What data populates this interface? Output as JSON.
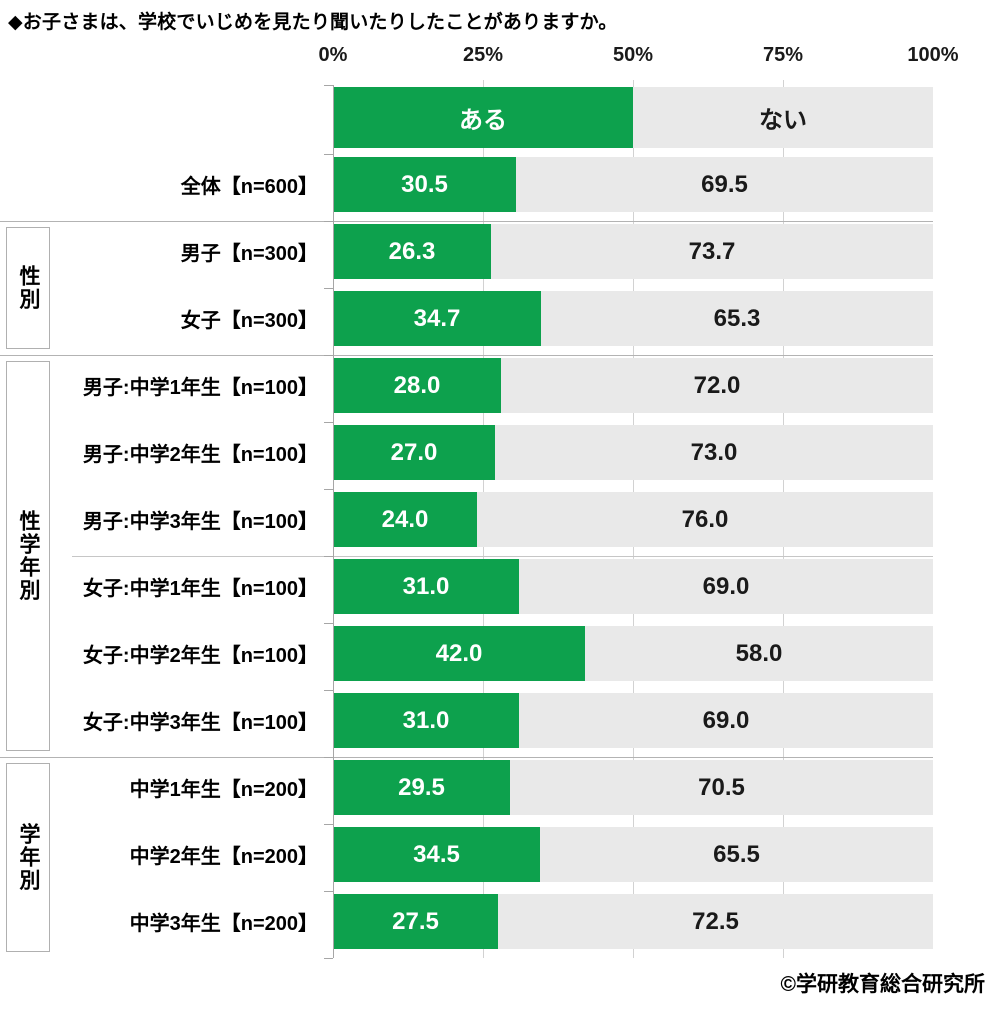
{
  "title": "◆お子さまは、学校でいじめを見たり聞いたりしたことがありますか。",
  "footer": "©学研教育総合研究所",
  "colors": {
    "aru_fill": "#0DA14D",
    "nai_fill": "#E9E9E9",
    "aru_text": "#ffffff",
    "nai_text": "#1a1a1a",
    "gridline": "#d2d2d2",
    "axis": "#a6a6a6",
    "group_line": "#b3b3b3"
  },
  "chart_data": {
    "type": "bar",
    "variant": "horizontal-stacked",
    "unit": "%",
    "xlim": [
      0,
      100
    ],
    "grid": true,
    "legend_position": "top-row",
    "tick_labels": [
      "0%",
      "25%",
      "50%",
      "75%",
      "100%"
    ],
    "tick_values": [
      0,
      25,
      50,
      75,
      100
    ],
    "value_decimals": 1,
    "categories": [
      "全体【n=600】",
      "男子【n=300】",
      "女子【n=300】",
      "男子:中学1年生【n=100】",
      "男子:中学2年生【n=100】",
      "男子:中学3年生【n=100】",
      "女子:中学1年生【n=100】",
      "女子:中学2年生【n=100】",
      "女子:中学3年生【n=100】",
      "中学1年生【n=200】",
      "中学2年生【n=200】",
      "中学3年生【n=200】"
    ],
    "series": [
      {
        "name": "ある",
        "values": [
          30.5,
          26.3,
          34.7,
          28.0,
          27.0,
          24.0,
          31.0,
          42.0,
          31.0,
          29.5,
          34.5,
          27.5
        ]
      },
      {
        "name": "ない",
        "values": [
          69.5,
          73.7,
          65.3,
          72.0,
          73.0,
          76.0,
          69.0,
          58.0,
          69.0,
          70.5,
          65.5,
          72.5
        ]
      }
    ],
    "legend_split": 50,
    "groups": [
      {
        "label": "性別",
        "start": 1,
        "count": 2
      },
      {
        "label": "性学年別",
        "start": 3,
        "count": 6,
        "divider_after": 5
      },
      {
        "label": "学年別",
        "start": 9,
        "count": 3
      }
    ]
  }
}
